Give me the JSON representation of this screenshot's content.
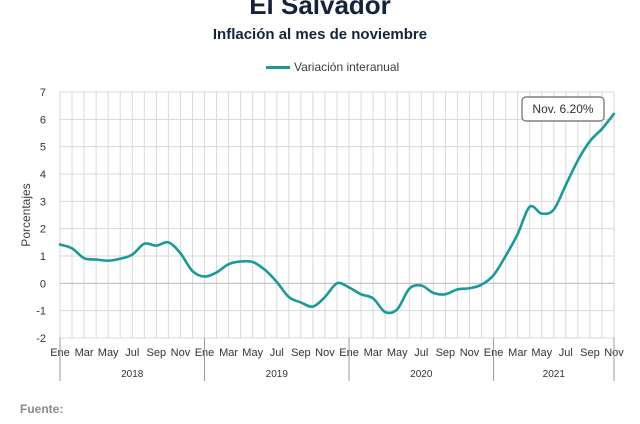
{
  "header": {
    "title": "El Salvador",
    "subtitle": "Inflación al mes de noviembre"
  },
  "footer": {
    "source_label": "Fuente:"
  },
  "chart_data": {
    "type": "line",
    "title": "El Salvador",
    "subtitle": "Inflación al mes de noviembre",
    "xlabel": "",
    "ylabel": "Porcentajes",
    "ylim": [
      -2,
      7
    ],
    "yticks": [
      -2,
      -1,
      0,
      1,
      2,
      3,
      4,
      5,
      6,
      7
    ],
    "grid": true,
    "legend_position": "top-center",
    "month_tick_labels": [
      "Ene",
      "Mar",
      "May",
      "Jul",
      "Sep",
      "Nov"
    ],
    "years": [
      "2018",
      "2019",
      "2020",
      "2021"
    ],
    "x": [
      "Ene 2018",
      "Feb 2018",
      "Mar 2018",
      "Abr 2018",
      "May 2018",
      "Jun 2018",
      "Jul 2018",
      "Ago 2018",
      "Sep 2018",
      "Oct 2018",
      "Nov 2018",
      "Dic 2018",
      "Ene 2019",
      "Feb 2019",
      "Mar 2019",
      "Abr 2019",
      "May 2019",
      "Jun 2019",
      "Jul 2019",
      "Ago 2019",
      "Sep 2019",
      "Oct 2019",
      "Nov 2019",
      "Dic 2019",
      "Ene 2020",
      "Feb 2020",
      "Mar 2020",
      "Abr 2020",
      "May 2020",
      "Jun 2020",
      "Jul 2020",
      "Ago 2020",
      "Sep 2020",
      "Oct 2020",
      "Nov 2020",
      "Dic 2020",
      "Ene 2021",
      "Feb 2021",
      "Mar 2021",
      "Abr 2021",
      "May 2021",
      "Jun 2021",
      "Jul 2021",
      "Ago 2021",
      "Sep 2021",
      "Oct 2021",
      "Nov 2021"
    ],
    "series": [
      {
        "name": "Variación interanual",
        "color": "#1a9a9a",
        "values": [
          1.42,
          1.28,
          0.92,
          0.87,
          0.83,
          0.9,
          1.05,
          1.45,
          1.38,
          1.5,
          1.1,
          0.45,
          0.25,
          0.4,
          0.7,
          0.8,
          0.78,
          0.5,
          0.05,
          -0.5,
          -0.7,
          -0.85,
          -0.5,
          0.0,
          -0.15,
          -0.4,
          -0.55,
          -1.05,
          -0.95,
          -0.2,
          -0.08,
          -0.35,
          -0.4,
          -0.22,
          -0.18,
          -0.05,
          0.3,
          1.0,
          1.8,
          2.8,
          2.55,
          2.7,
          3.6,
          4.5,
          5.2,
          5.65,
          6.2
        ]
      }
    ],
    "annotation": {
      "text": "Nov. 6.20%",
      "point": "Nov 2021"
    }
  }
}
